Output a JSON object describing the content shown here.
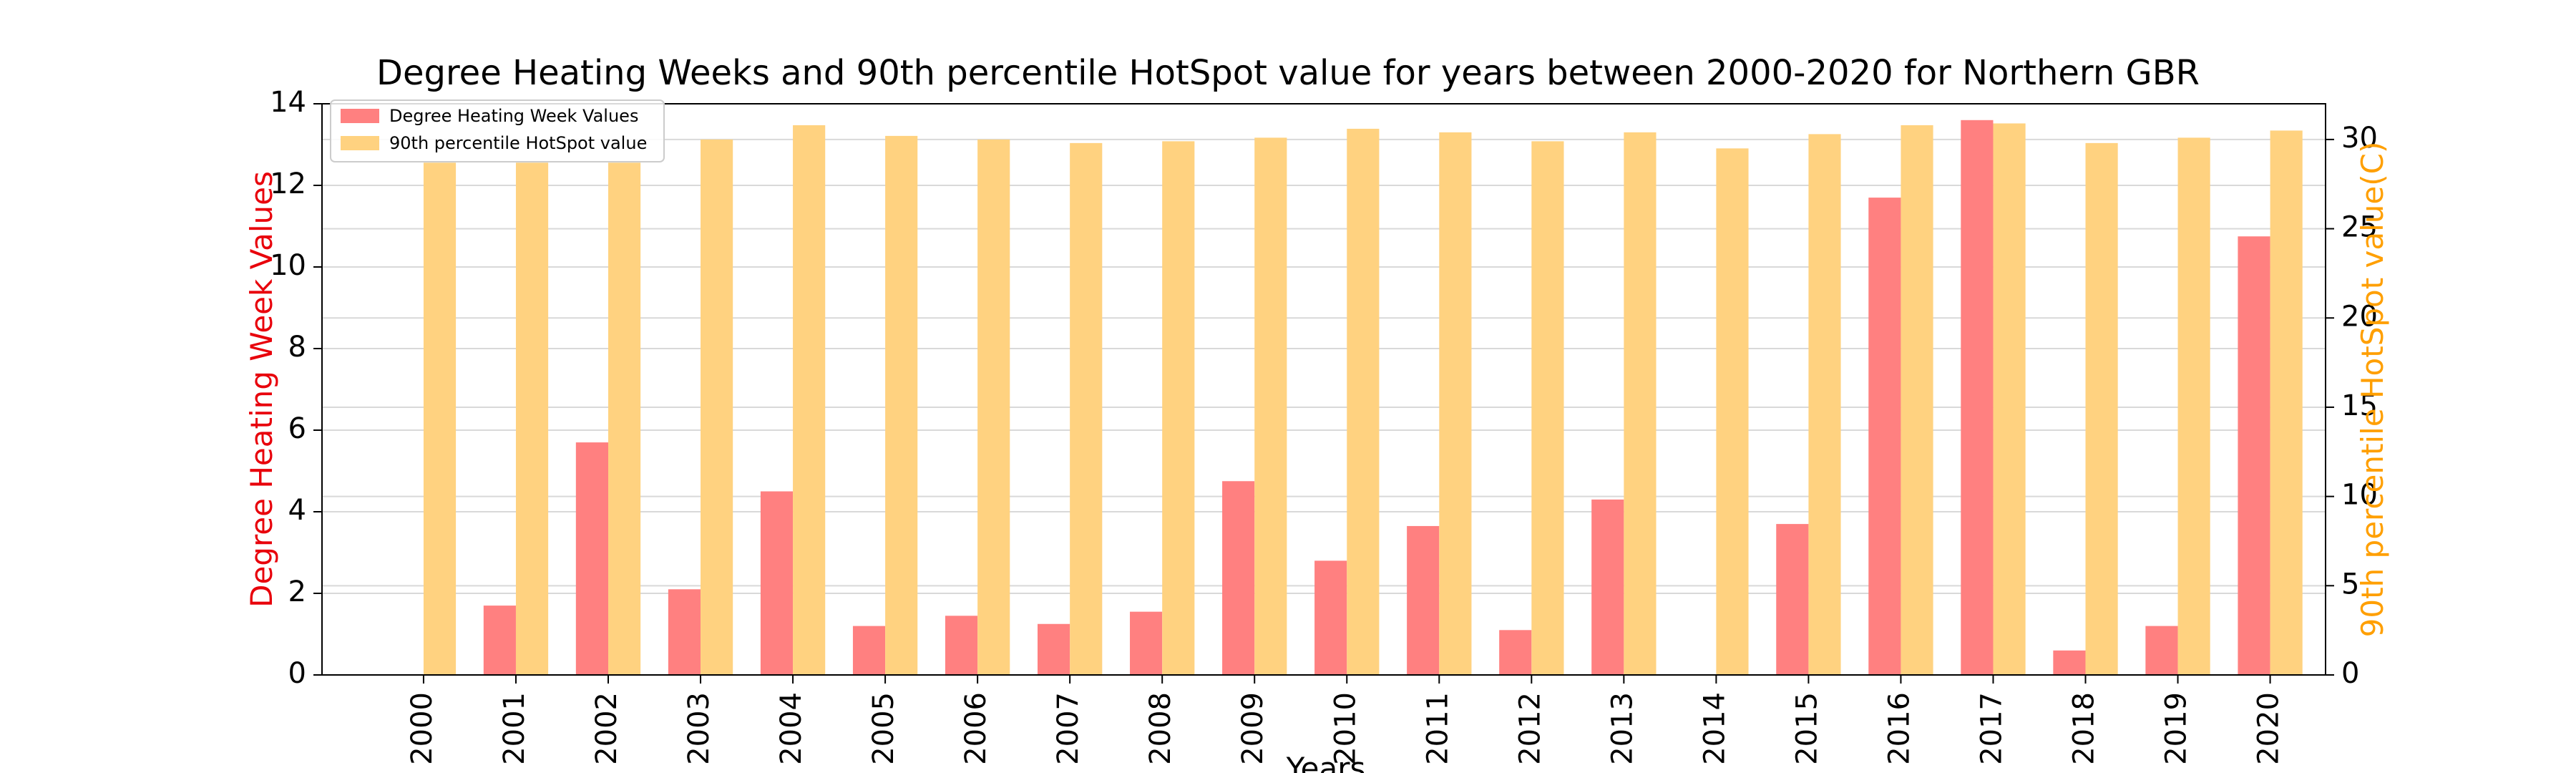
{
  "chart_data": {
    "type": "bar",
    "title": "Degree Heating Weeks and 90th percentile HotSpot value for years between 2000-2020 for Northern GBR",
    "xlabel": "Years",
    "categories": [
      "2000",
      "2001",
      "2002",
      "2003",
      "2004",
      "2005",
      "2006",
      "2007",
      "2008",
      "2009",
      "2010",
      "2011",
      "2012",
      "2013",
      "2014",
      "2015",
      "2016",
      "2017",
      "2018",
      "2019",
      "2020"
    ],
    "series": [
      {
        "name": "Degree Heating Week Values",
        "axis": "left",
        "color": "#ff8080",
        "values": [
          0,
          1.7,
          5.7,
          2.1,
          4.5,
          1.2,
          1.45,
          1.25,
          1.55,
          4.75,
          2.8,
          3.65,
          1.1,
          4.3,
          0,
          3.7,
          11.7,
          13.6,
          0.6,
          1.2,
          10.75
        ]
      },
      {
        "name": "90th percentile HotSpot value",
        "axis": "right",
        "color": "#ffd280",
        "values": [
          28.7,
          28.7,
          28.7,
          30.0,
          30.8,
          30.2,
          30.0,
          29.8,
          29.9,
          30.1,
          30.6,
          30.4,
          29.9,
          30.4,
          29.5,
          30.3,
          30.8,
          30.9,
          29.8,
          30.1,
          30.5
        ]
      }
    ],
    "y_left": {
      "label": "Degree Heating Week Values",
      "color": "#e8000b",
      "ylim": [
        0,
        14
      ],
      "ticks": [
        "0",
        "2",
        "4",
        "6",
        "8",
        "10",
        "12",
        "14"
      ]
    },
    "y_right": {
      "label": "90th percentile HotSpot value(C)",
      "color": "#ff9f00",
      "ylim": [
        0,
        32
      ],
      "ticks": [
        "0",
        "5",
        "10",
        "15",
        "20",
        "25",
        "30"
      ]
    },
    "grid": "horizontal",
    "legend_position": "top-left"
  }
}
